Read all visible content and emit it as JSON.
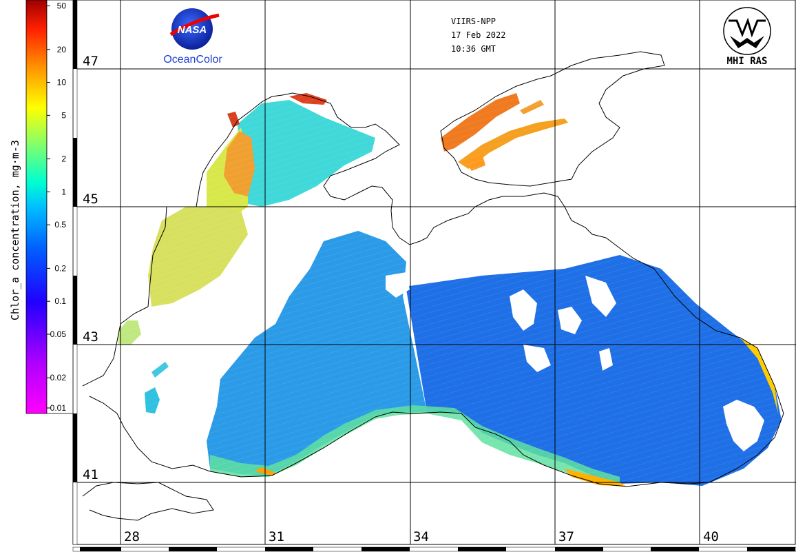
{
  "header": {
    "sensor": "VIIRS-NPP",
    "date": "17 Feb 2022",
    "time": "10:36 GMT"
  },
  "logos": {
    "nasa_text": "NASA",
    "oceancolor_text": "OceanColor",
    "mhi_text": "MHI RAS"
  },
  "colorbar": {
    "title": "Chlor_a concentration, mg·m-3",
    "ticks": [
      "50",
      "20",
      "10",
      "5",
      "2",
      "1",
      "0.5",
      "0.2",
      "0.1",
      "0.05",
      "0.02",
      "0.01"
    ],
    "scale": "log",
    "range": [
      0.01,
      60
    ],
    "colors": [
      "#8b0000",
      "#ff0000",
      "#ff8c00",
      "#ffff00",
      "#7fff7f",
      "#00ffff",
      "#0080ff",
      "#0000ff",
      "#8000ff",
      "#ff00ff"
    ]
  },
  "map": {
    "region": "Black Sea",
    "lat_labels": [
      "47",
      "45",
      "43",
      "41"
    ],
    "lon_labels": [
      "28",
      "31",
      "34",
      "37",
      "40"
    ],
    "land_color": "#ffffff",
    "coast_color": "#000000"
  }
}
